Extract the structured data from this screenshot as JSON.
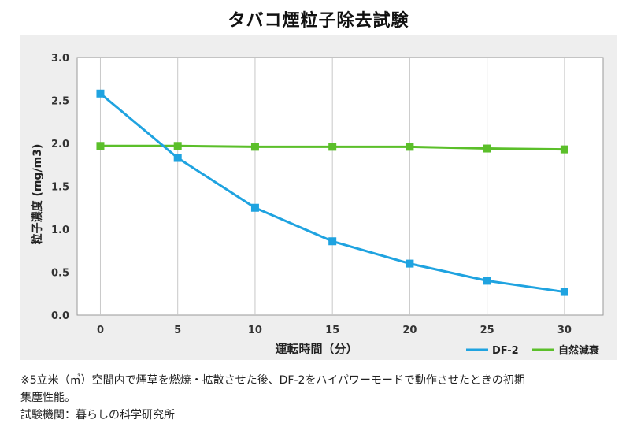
{
  "title": "タバコ煙粒子除去試験",
  "chart_data": {
    "type": "line",
    "title": "タバコ煙粒子除去試験",
    "xlabel": "運転時間（分）",
    "ylabel": "粒子濃度 (mg/m3)",
    "x": [
      0,
      5,
      10,
      15,
      20,
      25,
      30
    ],
    "x_tick_labels": [
      "0",
      "5",
      "10",
      "15",
      "20",
      "25",
      "30"
    ],
    "y_tick_labels": [
      "0.0",
      "0.5",
      "1.0",
      "1.5",
      "2.0",
      "2.5",
      "3.0"
    ],
    "xlim": [
      -1.5,
      32.5
    ],
    "ylim": [
      0,
      3.0
    ],
    "grid": "vertical",
    "legend_position": "bottom-right",
    "series": [
      {
        "name": "DF-2",
        "color": "#1fa3e0",
        "values": [
          2.58,
          1.83,
          1.25,
          0.86,
          0.6,
          0.4,
          0.27
        ]
      },
      {
        "name": "自然減衰",
        "color": "#5bbf2a",
        "values": [
          1.97,
          1.97,
          1.96,
          1.96,
          1.96,
          1.94,
          1.93
        ]
      }
    ]
  },
  "footnote": {
    "line1": "※5立米（㎥）空間内で煙草を燃焼・拡散させた後、DF-2をハイパワーモードで動作させたときの初期",
    "line2": "集塵性能。",
    "line3": "試験機関：暮らしの科学研究所"
  }
}
